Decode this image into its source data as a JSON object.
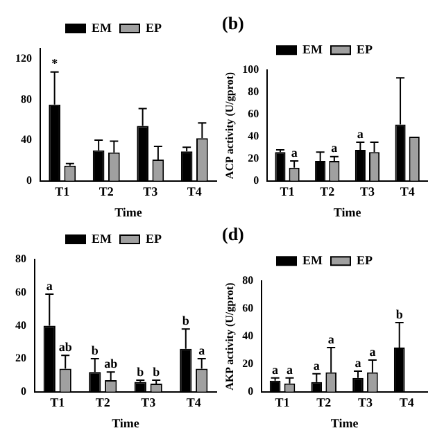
{
  "chart_data": [
    {
      "type": "bar",
      "categories": [
        "T1",
        "T2",
        "T3",
        "T4"
      ],
      "xlabel": "Time",
      "ylim": [
        0,
        130
      ],
      "yticks": [
        0,
        40,
        80,
        120
      ],
      "legend": "top",
      "grid": false,
      "series": [
        {
          "name": "EM",
          "color": "#000000",
          "values": [
            75,
            30,
            54,
            29
          ],
          "errors": [
            32,
            10,
            17,
            4
          ]
        },
        {
          "name": "EP",
          "color": "#a0a0a0",
          "values": [
            15,
            28,
            21,
            42
          ],
          "errors": [
            2,
            11,
            13,
            15
          ]
        }
      ],
      "annotations": [
        {
          "text": "*",
          "x": "T1",
          "y": 107
        }
      ]
    },
    {
      "type": "bar",
      "title": "(b)",
      "categories": [
        "T1",
        "T2",
        "T3",
        "T4"
      ],
      "xlabel": "Time",
      "ylabel": "ACP activity (U/gprot)",
      "ylim": [
        0,
        100
      ],
      "yticks": [
        0,
        20,
        40,
        60,
        80,
        100
      ],
      "legend": "top",
      "grid": false,
      "series": [
        {
          "name": "EM",
          "color": "#000000",
          "values": [
            26,
            18,
            28,
            51
          ],
          "errors": [
            2,
            8,
            7,
            42
          ]
        },
        {
          "name": "EP",
          "color": "#a0a0a0",
          "values": [
            12,
            18,
            26,
            40
          ],
          "errors": [
            6,
            4,
            9,
            null
          ]
        }
      ],
      "annotations": [
        {
          "text": "a",
          "x": "T1",
          "y": 18
        },
        {
          "text": "a",
          "x": "T2",
          "y": 22
        },
        {
          "text": "a",
          "x": "T3",
          "y": 35
        }
      ]
    },
    {
      "type": "bar",
      "categories": [
        "T1",
        "T2",
        "T3",
        "T4"
      ],
      "xlabel": "Time",
      "ylim": [
        0,
        80
      ],
      "yticks": [
        0,
        20,
        40,
        60,
        80
      ],
      "legend": "top",
      "grid": false,
      "series": [
        {
          "name": "EM",
          "color": "#000000",
          "values": [
            40,
            12,
            6,
            26
          ],
          "errors": [
            19,
            8,
            1,
            12
          ]
        },
        {
          "name": "EP",
          "color": "#a0a0a0",
          "values": [
            14,
            7,
            5,
            14
          ],
          "errors": [
            8,
            5,
            2,
            6
          ]
        }
      ],
      "annotations": [
        {
          "text": "a",
          "x": "T1",
          "y": 59
        },
        {
          "text": "ab",
          "x": "T1",
          "y": 22
        },
        {
          "text": "b",
          "x": "T2",
          "y": 20
        },
        {
          "text": "ab",
          "x": "T2",
          "y": 12
        },
        {
          "text": "b",
          "x": "T3",
          "y": 7
        },
        {
          "text": "b",
          "x": "T3",
          "y": 7
        },
        {
          "text": "b",
          "x": "T4",
          "y": 38
        },
        {
          "text": "a",
          "x": "T4",
          "y": 20
        }
      ]
    },
    {
      "type": "bar",
      "title": "(d)",
      "categories": [
        "T1",
        "T2",
        "T3",
        "T4"
      ],
      "xlabel": "Time",
      "ylabel": "AKP activity (U/gprot)",
      "ylim": [
        0,
        80
      ],
      "yticks": [
        0,
        20,
        40,
        60,
        80
      ],
      "legend": "top",
      "grid": false,
      "series": [
        {
          "name": "EM",
          "color": "#000000",
          "values": [
            8,
            7,
            10,
            32
          ],
          "errors": [
            2,
            6,
            5,
            18
          ]
        },
        {
          "name": "EP",
          "color": "#a0a0a0",
          "values": [
            6,
            14,
            14,
            null
          ],
          "errors": [
            4,
            18,
            9,
            null
          ]
        }
      ],
      "annotations": [
        {
          "text": "a",
          "x": "T1",
          "y": 10
        },
        {
          "text": "a",
          "x": "T1",
          "y": 10
        },
        {
          "text": "a",
          "x": "T2",
          "y": 13
        },
        {
          "text": "a",
          "x": "T2",
          "y": 32
        },
        {
          "text": "a",
          "x": "T3",
          "y": 15
        },
        {
          "text": "a",
          "x": "T3",
          "y": 23
        },
        {
          "text": "b",
          "x": "T4",
          "y": 50
        }
      ]
    }
  ]
}
